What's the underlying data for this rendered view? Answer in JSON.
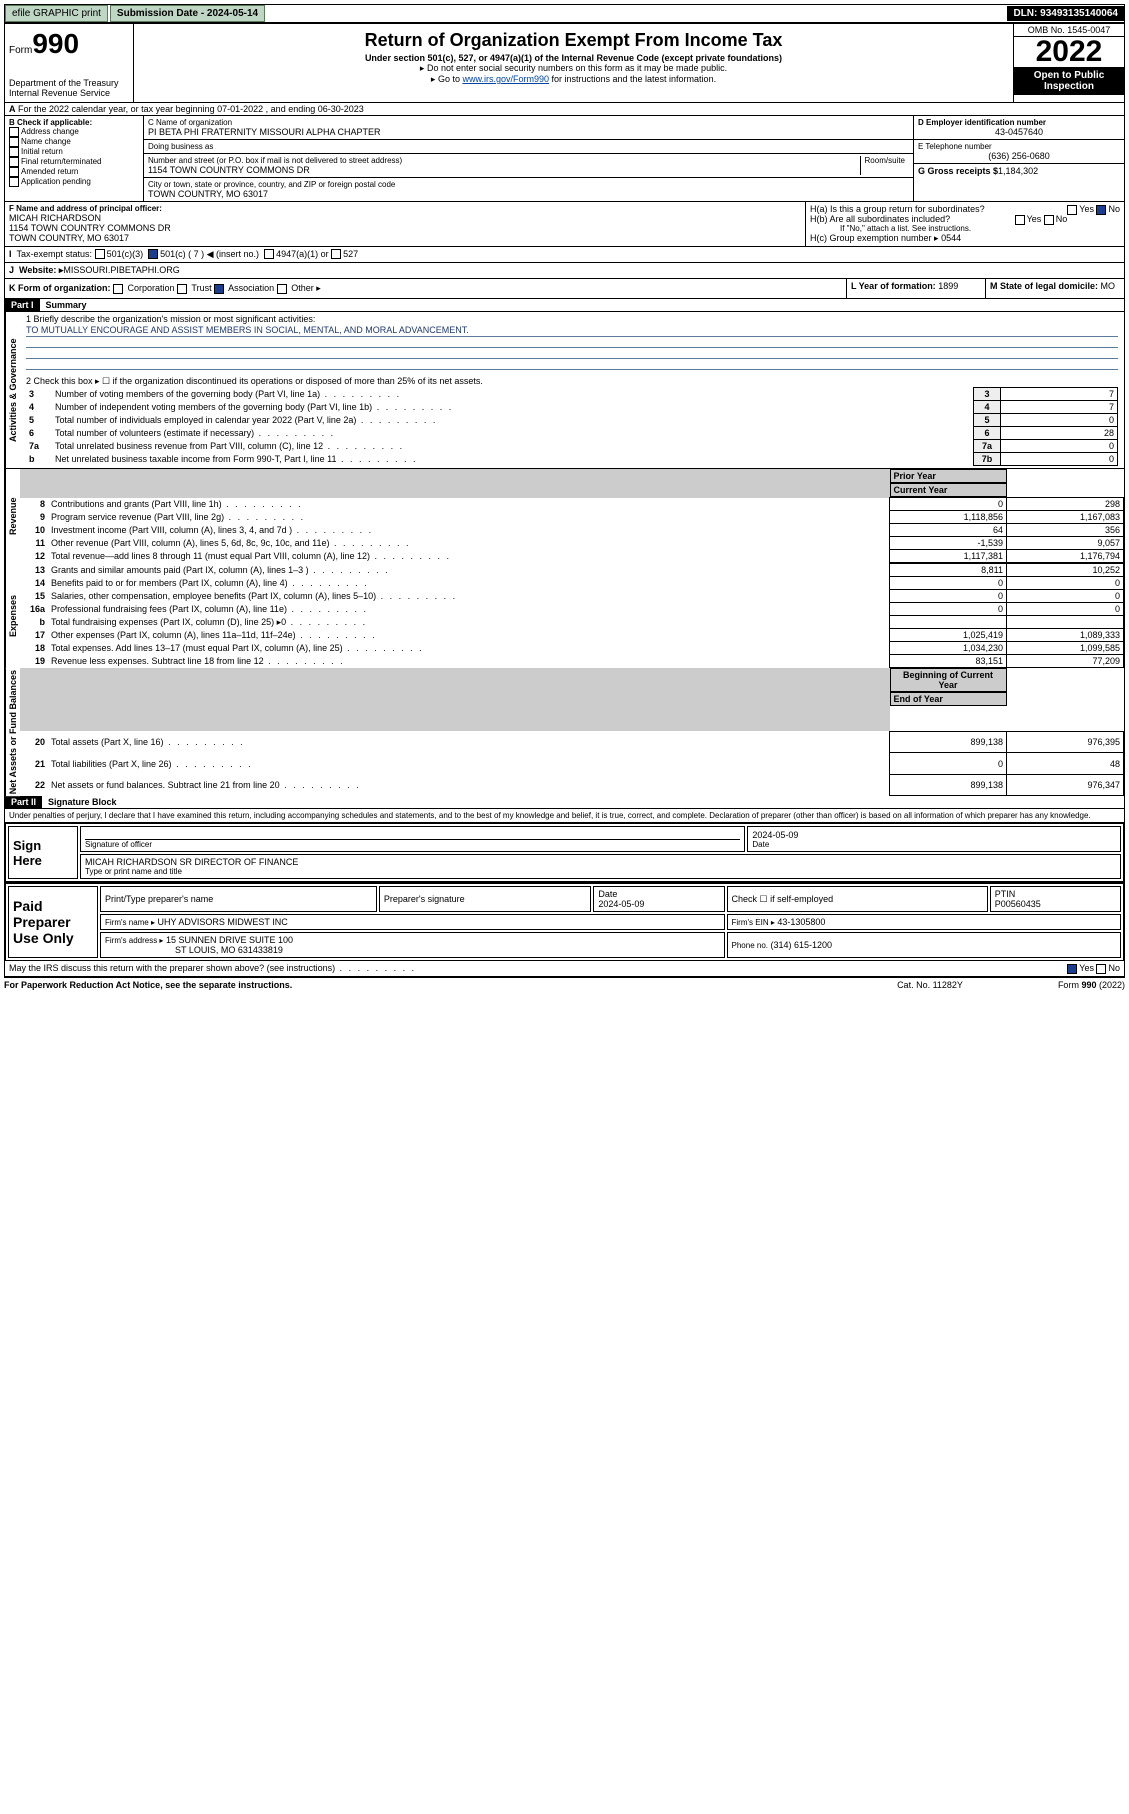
{
  "topbar": {
    "efile": "efile GRAPHIC print",
    "sub_label": "Submission Date - 2024-05-14",
    "dln": "DLN: 93493135140064"
  },
  "header": {
    "form_prefix": "Form",
    "form_num": "990",
    "title": "Return of Organization Exempt From Income Tax",
    "sub": "Under section 501(c), 527, or 4947(a)(1) of the Internal Revenue Code (except private foundations)",
    "note1": "▸ Do not enter social security numbers on this form as it may be made public.",
    "note2": "▸ Go to ",
    "link": "www.irs.gov/Form990",
    "note3": " for instructions and the latest information.",
    "dept": "Department of the Treasury",
    "irs": "Internal Revenue Service",
    "omb": "OMB No. 1545-0047",
    "year": "2022",
    "open": "Open to Public Inspection"
  },
  "A": {
    "text": "For the 2022 calendar year, or tax year beginning 07-01-2022   , and ending 06-30-2023"
  },
  "B": {
    "label": "B Check if applicable:",
    "items": [
      "Address change",
      "Name change",
      "Initial return",
      "Final return/terminated",
      "Amended return",
      "Application pending"
    ]
  },
  "C": {
    "label": "C Name of organization",
    "name": "PI BETA PHI FRATERNITY MISSOURI ALPHA CHAPTER",
    "dba_label": "Doing business as",
    "dba": "",
    "addr_label": "Number and street (or P.O. box if mail is not delivered to street address)",
    "room": "Room/suite",
    "addr": "1154 TOWN COUNTRY COMMONS DR",
    "city_label": "City or town, state or province, country, and ZIP or foreign postal code",
    "city": "TOWN COUNTRY, MO  63017"
  },
  "D": {
    "label": "D Employer identification number",
    "val": "43-0457640"
  },
  "E": {
    "label": "E Telephone number",
    "val": "(636) 256-0680"
  },
  "G": {
    "label": "G Gross receipts $",
    "val": "1,184,302"
  },
  "F": {
    "label": "F  Name and address of principal officer:",
    "name": "MICAH RICHARDSON",
    "addr": "1154 TOWN COUNTRY COMMONS DR",
    "city": "TOWN COUNTRY, MO  63017"
  },
  "H": {
    "a": "H(a)  Is this a group return for subordinates?",
    "b": "H(b)  Are all subordinates included?",
    "note": "If \"No,\" attach a list. See instructions.",
    "c": "H(c)  Group exemption number ▸",
    "c_val": "0544",
    "yes": "Yes",
    "no": "No"
  },
  "I": {
    "label": "Tax-exempt status:",
    "opts": [
      "501(c)(3)",
      "501(c) ( 7 ) ◀ (insert no.)",
      "4947(a)(1) or",
      "527"
    ]
  },
  "J": {
    "label": "Website: ▸",
    "val": "MISSOURI.PIBETAPHI.ORG"
  },
  "K": {
    "label": "K Form of organization:",
    "opts": [
      "Corporation",
      "Trust",
      "Association",
      "Other ▸"
    ]
  },
  "L": {
    "label": "L Year of formation:",
    "val": "1899"
  },
  "M": {
    "label": "M State of legal domicile:",
    "val": "MO"
  },
  "part1": {
    "label": "Part I",
    "title": "Summary"
  },
  "mission_label": "1  Briefly describe the organization's mission or most significant activities:",
  "mission": "TO MUTUALLY ENCOURAGE AND ASSIST MEMBERS IN SOCIAL, MENTAL, AND MORAL ADVANCEMENT.",
  "line2": "2  Check this box ▸ ☐  if the organization discontinued its operations or disposed of more than 25% of its net assets.",
  "gov_lines": [
    {
      "n": "3",
      "t": "Number of voting members of the governing body (Part VI, line 1a)",
      "box": "3",
      "v": "7"
    },
    {
      "n": "4",
      "t": "Number of independent voting members of the governing body (Part VI, line 1b)",
      "box": "4",
      "v": "7"
    },
    {
      "n": "5",
      "t": "Total number of individuals employed in calendar year 2022 (Part V, line 2a)",
      "box": "5",
      "v": "0"
    },
    {
      "n": "6",
      "t": "Total number of volunteers (estimate if necessary)",
      "box": "6",
      "v": "28"
    },
    {
      "n": "7a",
      "t": "Total unrelated business revenue from Part VIII, column (C), line 12",
      "box": "7a",
      "v": "0"
    },
    {
      "n": "b",
      "t": "Net unrelated business taxable income from Form 990-T, Part I, line 11",
      "box": "7b",
      "v": "0"
    }
  ],
  "cols": {
    "prior": "Prior Year",
    "curr": "Current Year"
  },
  "rev": [
    {
      "n": "8",
      "t": "Contributions and grants (Part VIII, line 1h)",
      "p": "0",
      "c": "298"
    },
    {
      "n": "9",
      "t": "Program service revenue (Part VIII, line 2g)",
      "p": "1,118,856",
      "c": "1,167,083"
    },
    {
      "n": "10",
      "t": "Investment income (Part VIII, column (A), lines 3, 4, and 7d )",
      "p": "64",
      "c": "356"
    },
    {
      "n": "11",
      "t": "Other revenue (Part VIII, column (A), lines 5, 6d, 8c, 9c, 10c, and 11e)",
      "p": "-1,539",
      "c": "9,057"
    },
    {
      "n": "12",
      "t": "Total revenue—add lines 8 through 11 (must equal Part VIII, column (A), line 12)",
      "p": "1,117,381",
      "c": "1,176,794"
    }
  ],
  "exp": [
    {
      "n": "13",
      "t": "Grants and similar amounts paid (Part IX, column (A), lines 1–3 )",
      "p": "8,811",
      "c": "10,252"
    },
    {
      "n": "14",
      "t": "Benefits paid to or for members (Part IX, column (A), line 4)",
      "p": "0",
      "c": "0"
    },
    {
      "n": "15",
      "t": "Salaries, other compensation, employee benefits (Part IX, column (A), lines 5–10)",
      "p": "0",
      "c": "0"
    },
    {
      "n": "16a",
      "t": "Professional fundraising fees (Part IX, column (A), line 11e)",
      "p": "0",
      "c": "0"
    },
    {
      "n": "b",
      "t": "Total fundraising expenses (Part IX, column (D), line 25) ▸0",
      "p": "",
      "c": ""
    },
    {
      "n": "17",
      "t": "Other expenses (Part IX, column (A), lines 11a–11d, 11f–24e)",
      "p": "1,025,419",
      "c": "1,089,333"
    },
    {
      "n": "18",
      "t": "Total expenses. Add lines 13–17 (must equal Part IX, column (A), line 25)",
      "p": "1,034,230",
      "c": "1,099,585"
    },
    {
      "n": "19",
      "t": "Revenue less expenses. Subtract line 18 from line 12",
      "p": "83,151",
      "c": "77,209"
    }
  ],
  "net_cols": {
    "beg": "Beginning of Current Year",
    "end": "End of Year"
  },
  "net": [
    {
      "n": "20",
      "t": "Total assets (Part X, line 16)",
      "p": "899,138",
      "c": "976,395"
    },
    {
      "n": "21",
      "t": "Total liabilities (Part X, line 26)",
      "p": "0",
      "c": "48"
    },
    {
      "n": "22",
      "t": "Net assets or fund balances. Subtract line 21 from line 20",
      "p": "899,138",
      "c": "976,347"
    }
  ],
  "vtabs": {
    "gov": "Activities & Governance",
    "rev": "Revenue",
    "exp": "Expenses",
    "net": "Net Assets or Fund Balances"
  },
  "part2": {
    "label": "Part II",
    "title": "Signature Block"
  },
  "perjury": "Under penalties of perjury, I declare that I have examined this return, including accompanying schedules and statements, and to the best of my knowledge and belief, it is true, correct, and complete. Declaration of preparer (other than officer) is based on all information of which preparer has any knowledge.",
  "sign": {
    "here": "Sign Here",
    "sig": "Signature of officer",
    "date_label": "Date",
    "date": "2024-05-09",
    "name": "MICAH RICHARDSON  SR DIRECTOR OF FINANCE",
    "type": "Type or print name and title"
  },
  "paid": {
    "label": "Paid Preparer Use Only",
    "pt": "Print/Type preparer's name",
    "ps": "Preparer's signature",
    "dt": "Date",
    "dv": "2024-05-09",
    "ck": "Check ☐ if self-employed",
    "ptin_l": "PTIN",
    "ptin": "P00560435",
    "firm_l": "Firm's name  ▸",
    "firm": "UHY ADVISORS MIDWEST INC",
    "ein_l": "Firm's EIN ▸",
    "ein": "43-1305800",
    "addr_l": "Firm's address ▸",
    "addr": "15 SUNNEN DRIVE SUITE 100",
    "city": "ST LOUIS, MO  631433819",
    "ph_l": "Phone no.",
    "ph": "(314) 615-1200"
  },
  "may": "May the IRS discuss this return with the preparer shown above? (see instructions)",
  "foot": {
    "l": "For Paperwork Reduction Act Notice, see the separate instructions.",
    "m": "Cat. No. 11282Y",
    "r": "Form 990 (2022)"
  }
}
